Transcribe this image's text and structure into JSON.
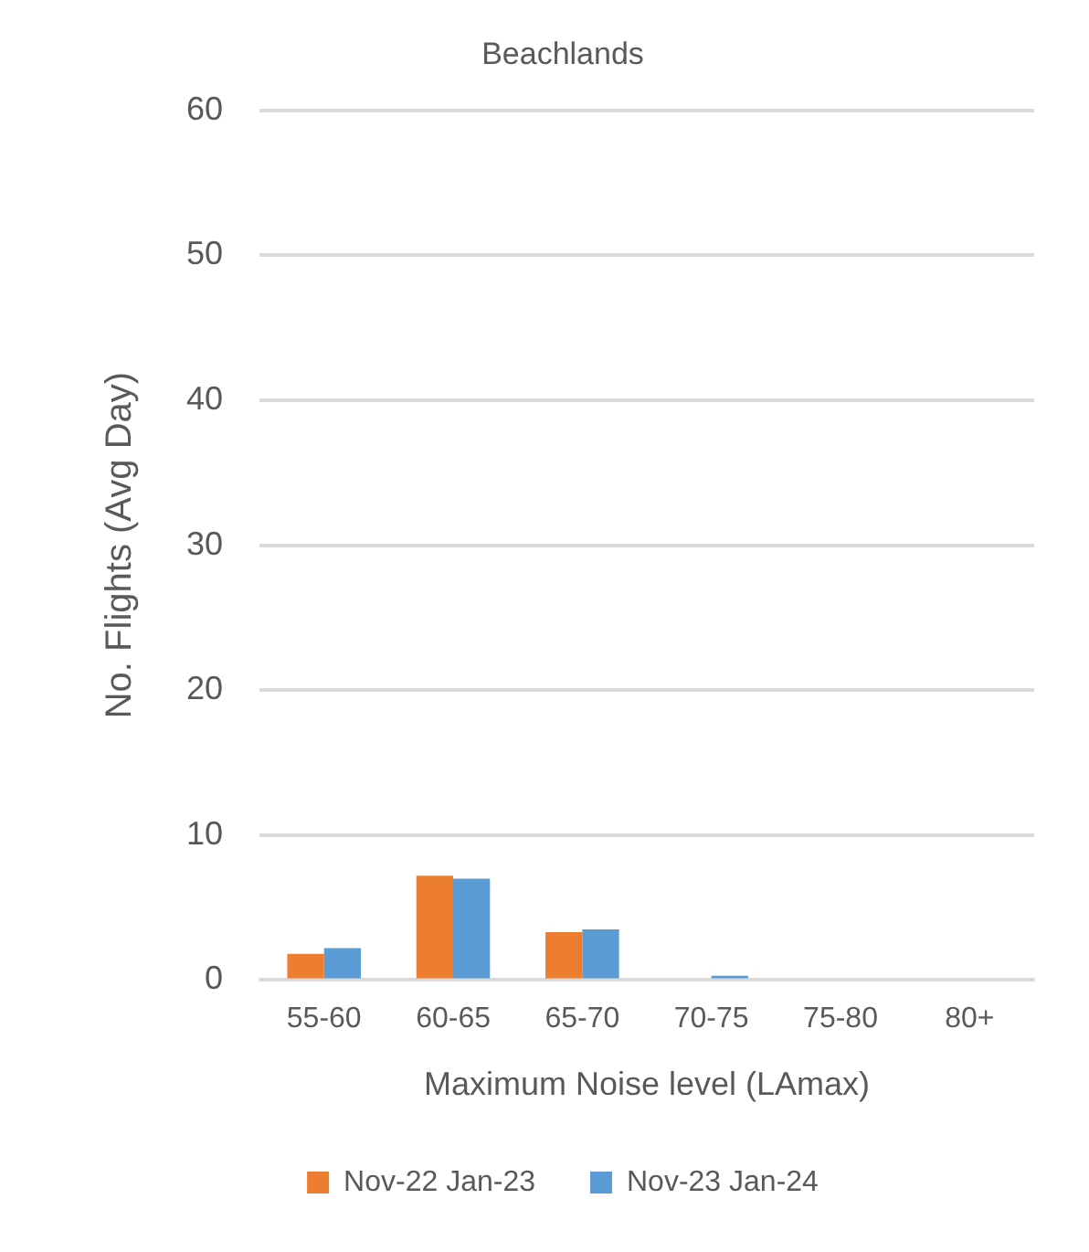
{
  "chart_data": {
    "type": "bar",
    "title": "Beachlands",
    "xlabel": "Maximum Noise level (LAmax)",
    "ylabel": "No. Flights (Avg Day)",
    "categories": [
      "55-60",
      "60-65",
      "65-70",
      "70-75",
      "75-80",
      "80+"
    ],
    "series": [
      {
        "name": "Nov-22 Jan-23",
        "color": "#ed7d31",
        "values": [
          1.8,
          7.2,
          3.3,
          0,
          0,
          0
        ]
      },
      {
        "name": "Nov-23 Jan-24",
        "color": "#5b9bd5",
        "values": [
          2.2,
          7.0,
          3.5,
          0.3,
          0,
          0
        ]
      }
    ],
    "ylim": [
      0,
      60
    ],
    "yticks": [
      0,
      10,
      20,
      30,
      40,
      50,
      60
    ],
    "grid": "y",
    "legend": "bottom"
  }
}
